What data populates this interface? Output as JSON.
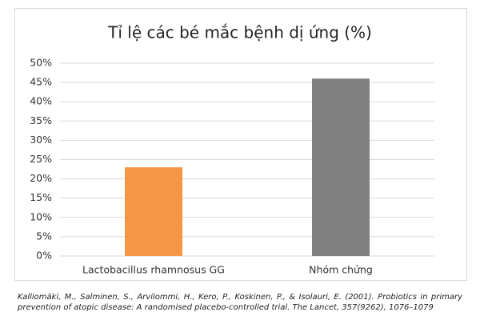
{
  "chart_data": {
    "type": "bar",
    "title": "Tỉ lệ các bé mắc bệnh dị ứng (%)",
    "categories": [
      "Lactobacillus rhamnosus GG",
      "Nhóm chứng"
    ],
    "values": [
      23,
      46
    ],
    "colors": [
      "#f79646",
      "#808080"
    ],
    "ylim": [
      0,
      50
    ],
    "yticks": [
      {
        "value": 0,
        "label": "0%"
      },
      {
        "value": 5,
        "label": "5%"
      },
      {
        "value": 10,
        "label": "10%"
      },
      {
        "value": 15,
        "label": "15%"
      },
      {
        "value": 20,
        "label": "20%"
      },
      {
        "value": 25,
        "label": "25%"
      },
      {
        "value": 30,
        "label": "30%"
      },
      {
        "value": 35,
        "label": "35%"
      },
      {
        "value": 40,
        "label": "40%"
      },
      {
        "value": 45,
        "label": "45%"
      },
      {
        "value": 50,
        "label": "50%"
      }
    ],
    "grid": true,
    "source": "Kalliomäki, M., Salminen, S., Arvilommi, H., Kero, P., Koskinen, P., & Isolauri, E. (2001). Probiotics in primary prevention of atopic disease: A randomised placebo-controlled trial. The Lancet, 357(9262), 1076–1079"
  }
}
